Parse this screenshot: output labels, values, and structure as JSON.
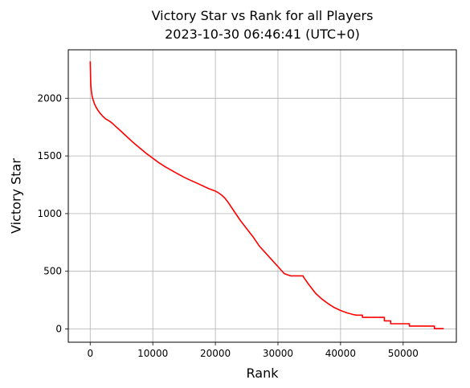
{
  "chart_data": {
    "type": "line",
    "title": "Victory Star vs Rank for all Players",
    "subtitle": "2023-10-30 06:46:41 (UTC+0)",
    "xlabel": "Rank",
    "ylabel": "Victory Star",
    "xlim": [
      -3500,
      58500
    ],
    "ylim": [
      -115,
      2420
    ],
    "xticks": [
      0,
      10000,
      20000,
      30000,
      40000,
      50000
    ],
    "yticks": [
      0,
      500,
      1000,
      1500,
      2000
    ],
    "grid": true,
    "legend": "none",
    "series": [
      {
        "color": "#ff0000",
        "x": [
          0,
          50,
          100,
          200,
          300,
          500,
          700,
          1000,
          1500,
          2000,
          2500,
          3000,
          3500,
          4000,
          5000,
          6000,
          7000,
          8000,
          9000,
          10000,
          11000,
          12000,
          13000,
          14000,
          15000,
          16000,
          17000,
          18000,
          19000,
          20000,
          20500,
          21000,
          21500,
          22000,
          23000,
          24000,
          25000,
          26000,
          27000,
          28000,
          29000,
          30000,
          31000,
          32000,
          32500,
          34000,
          34200,
          35000,
          36000,
          37000,
          38000,
          39000,
          40000,
          41000,
          42000,
          42500,
          43500,
          43500,
          44000,
          44000,
          47000,
          47000,
          48000,
          48000,
          49000,
          49000,
          51000,
          51000,
          55000,
          55000,
          56500
        ],
        "y": [
          2320,
          2200,
          2120,
          2060,
          2020,
          1980,
          1950,
          1915,
          1875,
          1845,
          1820,
          1805,
          1785,
          1760,
          1710,
          1660,
          1610,
          1565,
          1520,
          1480,
          1440,
          1405,
          1375,
          1345,
          1315,
          1290,
          1265,
          1240,
          1215,
          1195,
          1180,
          1160,
          1135,
          1100,
          1020,
          940,
          870,
          800,
          720,
          660,
          600,
          540,
          480,
          460,
          460,
          460,
          440,
          380,
          310,
          260,
          220,
          185,
          160,
          140,
          125,
          120,
          120,
          100,
          100,
          100,
          100,
          70,
          70,
          45,
          45,
          45,
          45,
          25,
          25,
          3,
          3
        ]
      }
    ]
  }
}
